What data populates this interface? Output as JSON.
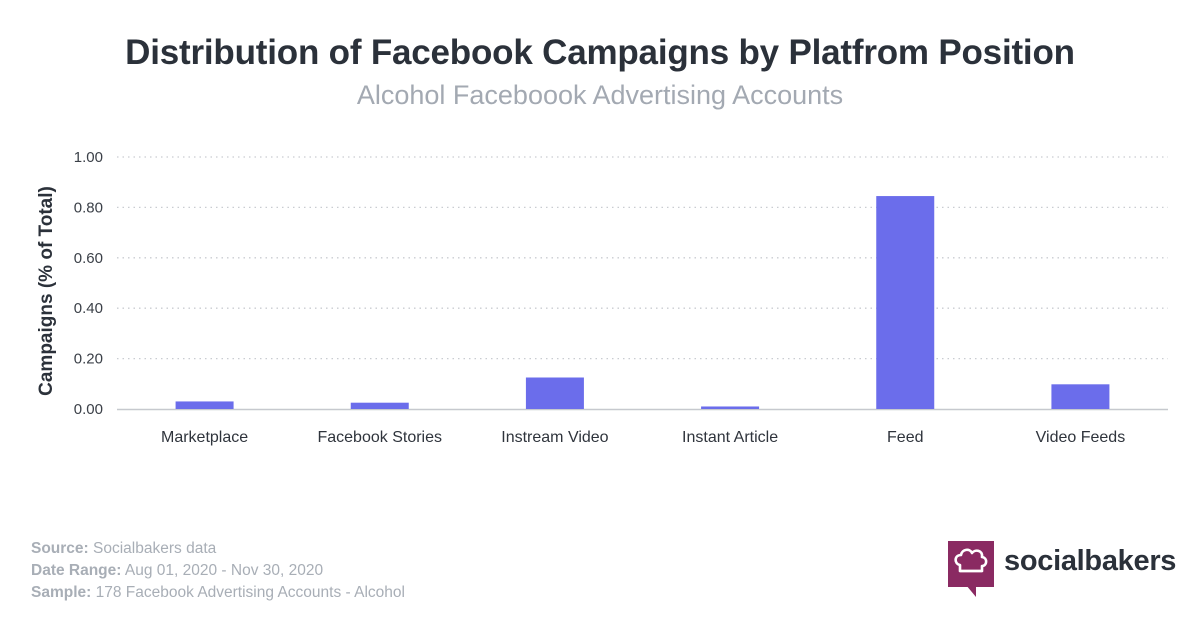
{
  "header": {
    "title": "Distribution of Facebook Campaigns by Platfrom Position",
    "subtitle": "Alcohol Faceboook Advertising Accounts"
  },
  "chart_data": {
    "type": "bar",
    "title": "Distribution of Facebook Campaigns by Platfrom Position",
    "subtitle": "Alcohol Faceboook Advertising Accounts",
    "xlabel": "",
    "ylabel": "Campaigns (% of Total)",
    "categories": [
      "Marketplace",
      "Facebook Stories",
      "Instream Video",
      "Instant Article",
      "Feed",
      "Video Feeds"
    ],
    "values": [
      0.03,
      0.025,
      0.125,
      0.01,
      0.845,
      0.098
    ],
    "ylim": [
      0,
      1
    ],
    "yticks": [
      "0.00",
      "0.20",
      "0.40",
      "0.60",
      "0.80",
      "1.00"
    ],
    "grid": true,
    "bar_color": "#6b6deb"
  },
  "footer": {
    "source_label": "Source:",
    "source_value": "Socialbakers data",
    "date_label": "Date Range:",
    "date_value": "Aug 01, 2020 - Nov 30, 2020",
    "sample_label": "Sample:",
    "sample_value": "178 Facebook Advertising Accounts - Alcohol"
  },
  "brand": {
    "name": "socialbakers",
    "icon": "chef-hat-icon",
    "color": "#8a2a62"
  }
}
